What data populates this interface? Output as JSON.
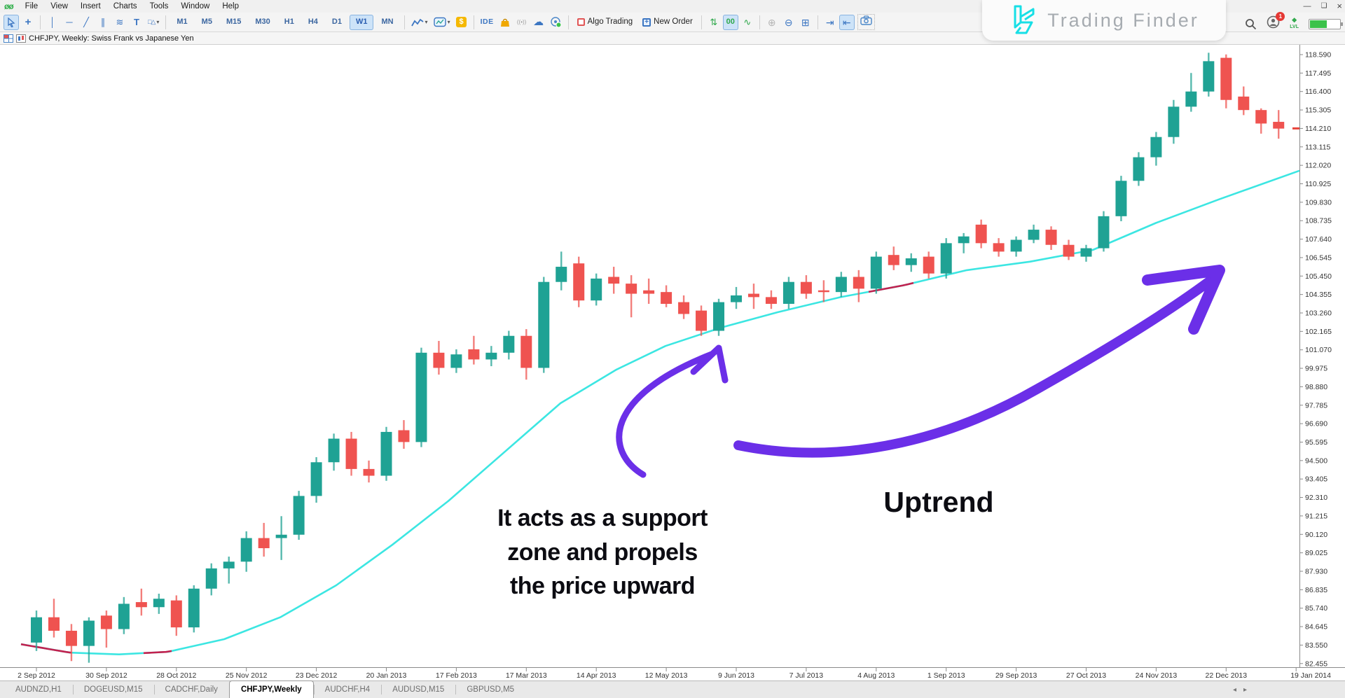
{
  "window": {
    "app_logo": "øø",
    "menu": [
      "File",
      "View",
      "Insert",
      "Charts",
      "Tools",
      "Window",
      "Help"
    ],
    "controls": {
      "minimize": "—",
      "restore": "❏",
      "close": "×"
    }
  },
  "toolbar": {
    "timeframes": [
      "M1",
      "M5",
      "M15",
      "M30",
      "H1",
      "H4",
      "D1",
      "W1",
      "MN"
    ],
    "selected_timeframe": "W1",
    "ide_label": "IDE",
    "algo_trading_label": "Algo Trading",
    "new_order_label": "New Order",
    "zeros_label": "00",
    "account": {
      "badge_count": "1",
      "lvl_label": "LVL",
      "battery_percent": 55
    }
  },
  "chart_header": {
    "title": "CHFJPY, Weekly: Swiss Frank vs Japanese Yen"
  },
  "logo": {
    "text": "Trading Finder"
  },
  "annotations": {
    "support_line1": "It acts as a support",
    "support_line2": "zone and propels",
    "support_line3": "the price upward",
    "uptrend": "Uptrend",
    "arrow_color": "#6b2fe8"
  },
  "tabs": {
    "items": [
      "AUDNZD,H1",
      "DOGEUSD,M15",
      "CADCHF,Daily",
      "CHFJPY,Weekly",
      "AUDCHF,H4",
      "AUDUSD,M15",
      "GBPUSD,M5"
    ],
    "active": "CHFJPY,Weekly",
    "scroll_left": "◂",
    "scroll_right": "▸"
  },
  "chart_data": {
    "type": "candlestick",
    "symbol": "CHFJPY",
    "timeframe": "Weekly",
    "title": "CHFJPY, Weekly: Swiss Frank vs Japanese Yen",
    "up_color": "#1fa294",
    "down_color": "#ef5350",
    "price_axis": {
      "labels": [
        "118.590",
        "117.495",
        "116.400",
        "115.305",
        "114.210",
        "113.115",
        "112.020",
        "110.925",
        "109.830",
        "108.735",
        "107.640",
        "106.545",
        "105.450",
        "104.355",
        "103.260",
        "102.165",
        "101.070",
        "99.975",
        "98.880",
        "97.785",
        "96.690",
        "95.595",
        "94.500",
        "93.405",
        "92.310",
        "91.215",
        "90.120",
        "89.025",
        "87.930",
        "86.835",
        "85.740",
        "84.645",
        "83.550",
        "82.455"
      ],
      "current_price": "114.210",
      "current_price_color": "#e8453c"
    },
    "date_axis": {
      "labels": [
        "2 Sep 2012",
        "30 Sep 2012",
        "28 Oct 2012",
        "25 Nov 2012",
        "23 Dec 2012",
        "20 Jan 2013",
        "17 Feb 2013",
        "17 Mar 2013",
        "14 Apr 2013",
        "12 May 2013",
        "9 Jun 2013",
        "7 Jul 2013",
        "4 Aug 2013",
        "1 Sep 2013",
        "29 Sep 2013",
        "27 Oct 2013",
        "24 Nov 2013",
        "22 Dec 2013",
        "19 Jan 2014"
      ]
    },
    "candles_ohlc": [
      [
        83.7,
        85.6,
        83.2,
        85.2
      ],
      [
        85.2,
        86.3,
        84.0,
        84.4
      ],
      [
        84.4,
        84.8,
        82.6,
        83.5
      ],
      [
        83.5,
        85.2,
        82.5,
        85.0
      ],
      [
        85.3,
        85.6,
        83.4,
        84.5
      ],
      [
        84.5,
        86.4,
        84.2,
        86.0
      ],
      [
        86.1,
        86.9,
        85.3,
        85.8
      ],
      [
        85.8,
        86.6,
        85.4,
        86.3
      ],
      [
        86.2,
        86.5,
        84.1,
        84.6
      ],
      [
        84.6,
        87.1,
        84.3,
        86.9
      ],
      [
        86.9,
        88.4,
        86.5,
        88.1
      ],
      [
        88.1,
        88.8,
        87.2,
        88.5
      ],
      [
        88.5,
        90.3,
        87.9,
        89.9
      ],
      [
        89.9,
        90.8,
        88.8,
        89.3
      ],
      [
        89.9,
        91.2,
        88.6,
        90.1
      ],
      [
        90.1,
        92.7,
        89.8,
        92.4
      ],
      [
        92.4,
        94.7,
        92.0,
        94.4
      ],
      [
        94.4,
        96.1,
        93.9,
        95.8
      ],
      [
        95.8,
        96.2,
        93.6,
        94.0
      ],
      [
        94.0,
        94.5,
        93.2,
        93.6
      ],
      [
        93.6,
        96.5,
        93.3,
        96.2
      ],
      [
        96.3,
        96.9,
        95.2,
        95.6
      ],
      [
        95.6,
        101.2,
        95.3,
        100.9
      ],
      [
        100.9,
        101.6,
        99.6,
        100.0
      ],
      [
        100.0,
        101.1,
        99.7,
        100.8
      ],
      [
        101.1,
        101.9,
        100.2,
        100.5
      ],
      [
        100.5,
        101.3,
        100.1,
        100.9
      ],
      [
        100.9,
        102.2,
        100.5,
        101.9
      ],
      [
        101.9,
        102.3,
        99.3,
        100.0
      ],
      [
        100.0,
        105.4,
        99.7,
        105.1
      ],
      [
        105.1,
        106.9,
        104.6,
        106.0
      ],
      [
        106.2,
        106.6,
        103.6,
        104.0
      ],
      [
        104.0,
        105.6,
        103.7,
        105.3
      ],
      [
        105.4,
        106.0,
        104.4,
        105.0
      ],
      [
        105.0,
        105.5,
        103.0,
        104.4
      ],
      [
        104.6,
        105.3,
        103.8,
        104.4
      ],
      [
        104.5,
        104.9,
        103.6,
        103.8
      ],
      [
        103.9,
        104.3,
        102.9,
        103.2
      ],
      [
        103.4,
        103.7,
        101.9,
        102.2
      ],
      [
        102.2,
        104.1,
        101.9,
        103.9
      ],
      [
        103.9,
        104.8,
        103.5,
        104.3
      ],
      [
        104.4,
        105.0,
        103.5,
        104.2
      ],
      [
        104.2,
        104.6,
        103.5,
        103.8
      ],
      [
        103.8,
        105.4,
        103.5,
        105.1
      ],
      [
        105.1,
        105.5,
        104.1,
        104.4
      ],
      [
        104.6,
        105.2,
        103.9,
        104.5
      ],
      [
        104.5,
        105.7,
        104.2,
        105.4
      ],
      [
        105.4,
        105.8,
        103.9,
        104.7
      ],
      [
        104.7,
        106.9,
        104.4,
        106.6
      ],
      [
        106.7,
        107.2,
        105.8,
        106.1
      ],
      [
        106.1,
        106.8,
        105.7,
        106.5
      ],
      [
        106.6,
        106.9,
        105.3,
        105.6
      ],
      [
        105.6,
        107.7,
        105.3,
        107.4
      ],
      [
        107.4,
        108.0,
        106.8,
        107.8
      ],
      [
        108.5,
        108.8,
        107.1,
        107.4
      ],
      [
        107.4,
        107.7,
        106.6,
        106.9
      ],
      [
        106.9,
        107.8,
        106.6,
        107.6
      ],
      [
        107.6,
        108.5,
        107.4,
        108.2
      ],
      [
        108.2,
        108.4,
        107.0,
        107.3
      ],
      [
        107.3,
        107.6,
        106.4,
        106.6
      ],
      [
        106.6,
        107.3,
        106.3,
        107.1
      ],
      [
        107.1,
        109.3,
        106.9,
        109.0
      ],
      [
        109.0,
        111.4,
        108.7,
        111.1
      ],
      [
        111.1,
        112.8,
        110.8,
        112.5
      ],
      [
        112.5,
        114.0,
        112.0,
        113.7
      ],
      [
        113.7,
        115.9,
        113.3,
        115.5
      ],
      [
        115.5,
        117.5,
        115.2,
        116.4
      ],
      [
        116.4,
        118.7,
        116.1,
        118.2
      ],
      [
        118.4,
        118.6,
        115.4,
        115.9
      ],
      [
        116.1,
        116.7,
        115.0,
        115.3
      ],
      [
        115.3,
        115.4,
        113.9,
        114.5
      ],
      [
        114.6,
        115.3,
        113.6,
        114.2
      ]
    ],
    "moving_average": {
      "color": "#3ce6e2",
      "bear_color": "#c2224f",
      "anchors": [
        [
          30,
          83.6
        ],
        [
          100,
          83.1
        ],
        [
          170,
          83.0
        ],
        [
          240,
          83.15
        ],
        [
          320,
          83.9
        ],
        [
          400,
          85.2
        ],
        [
          480,
          87.1
        ],
        [
          560,
          89.5
        ],
        [
          640,
          92.1
        ],
        [
          720,
          95.0
        ],
        [
          800,
          97.9
        ],
        [
          880,
          99.9
        ],
        [
          950,
          101.3
        ],
        [
          1030,
          102.4
        ],
        [
          1110,
          103.3
        ],
        [
          1200,
          104.2
        ],
        [
          1290,
          104.9
        ],
        [
          1380,
          105.8
        ],
        [
          1470,
          106.3
        ],
        [
          1560,
          107.0
        ],
        [
          1650,
          108.6
        ],
        [
          1740,
          110.0
        ],
        [
          1855,
          111.7
        ]
      ],
      "bear_segments": [
        [
          30,
          105
        ],
        [
          205,
          245
        ],
        [
          1240,
          1305
        ]
      ]
    },
    "ylim": [
      82.455,
      118.59
    ],
    "grid": false,
    "legend_position": "none"
  },
  "icons": {
    "dropdown": "▾",
    "crosshair": "+",
    "vline": "│",
    "hline": "─",
    "trendline": "╱",
    "channel": "∥",
    "pitchfork": "≋",
    "text_tool": "T",
    "shapes": "□△",
    "cloud": "☁",
    "signal": "((•))",
    "ticks": "⇅",
    "zigzag": "∿",
    "zoom_in": "⊕",
    "zoom_out": "⊖",
    "tile": "⊞",
    "shift_right": "⇥",
    "shift_left": "⇤"
  }
}
